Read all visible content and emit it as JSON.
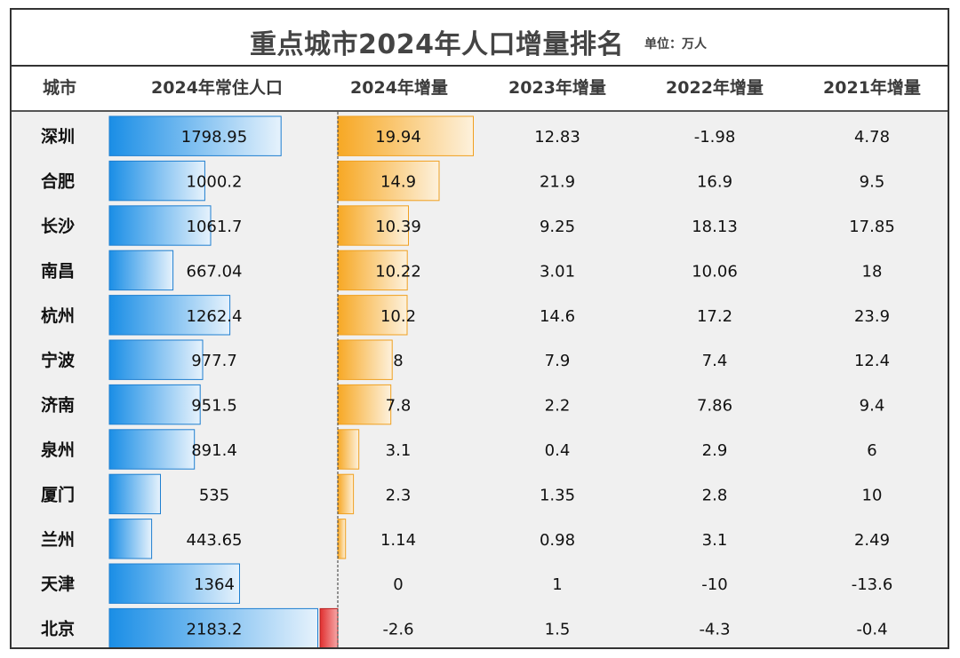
{
  "title": "重点城市2024年人口增量排名",
  "unit": "单位：万人",
  "headers": {
    "city": "城市",
    "pop2024": "2024年常住人口",
    "inc2024": "2024年增量",
    "inc2023": "2023年增量",
    "inc2022": "2022年增量",
    "inc2021": "2021年增量"
  },
  "colors": {
    "pop_bar": "#1a8ee6",
    "pop_bar_light": "#e6f2fc",
    "inc_bar": "#f7a824",
    "inc_bar_light": "#fdf1dc",
    "neg_bar": "#e03030",
    "neg_bar_light": "#f6a8a8"
  },
  "chart_data": {
    "type": "table",
    "title": "重点城市2024年人口增量排名",
    "unit": "万人",
    "columns": [
      "城市",
      "2024年常住人口",
      "2024年增量",
      "2023年增量",
      "2022年增量",
      "2021年增量"
    ],
    "rows": [
      {
        "city": "深圳",
        "pop2024": "1798.95",
        "inc2024": "19.94",
        "inc2023": "12.83",
        "inc2022": "-1.98",
        "inc2021": "4.78"
      },
      {
        "city": "合肥",
        "pop2024": "1000.2",
        "inc2024": "14.9",
        "inc2023": "21.9",
        "inc2022": "16.9",
        "inc2021": "9.5"
      },
      {
        "city": "长沙",
        "pop2024": "1061.7",
        "inc2024": "10.39",
        "inc2023": "9.25",
        "inc2022": "18.13",
        "inc2021": "17.85"
      },
      {
        "city": "南昌",
        "pop2024": "667.04",
        "inc2024": "10.22",
        "inc2023": "3.01",
        "inc2022": "10.06",
        "inc2021": "18"
      },
      {
        "city": "杭州",
        "pop2024": "1262.4",
        "inc2024": "10.2",
        "inc2023": "14.6",
        "inc2022": "17.2",
        "inc2021": "23.9"
      },
      {
        "city": "宁波",
        "pop2024": "977.7",
        "inc2024": "8",
        "inc2023": "7.9",
        "inc2022": "7.4",
        "inc2021": "12.4"
      },
      {
        "city": "济南",
        "pop2024": "951.5",
        "inc2024": "7.8",
        "inc2023": "2.2",
        "inc2022": "7.86",
        "inc2021": "9.4"
      },
      {
        "city": "泉州",
        "pop2024": "891.4",
        "inc2024": "3.1",
        "inc2023": "0.4",
        "inc2022": "2.9",
        "inc2021": "6"
      },
      {
        "city": "厦门",
        "pop2024": "535",
        "inc2024": "2.3",
        "inc2023": "1.35",
        "inc2022": "2.8",
        "inc2021": "10"
      },
      {
        "city": "兰州",
        "pop2024": "443.65",
        "inc2024": "1.14",
        "inc2023": "0.98",
        "inc2022": "3.1",
        "inc2021": "2.49"
      },
      {
        "city": "天津",
        "pop2024": "1364",
        "inc2024": "0",
        "inc2023": "1",
        "inc2022": "-10",
        "inc2021": "-13.6"
      },
      {
        "city": "北京",
        "pop2024": "2183.2",
        "inc2024": "-2.6",
        "inc2023": "1.5",
        "inc2022": "-4.3",
        "inc2021": "-0.4"
      }
    ]
  }
}
